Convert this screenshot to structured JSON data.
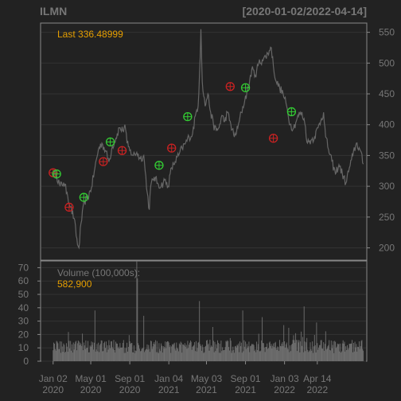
{
  "chart_data": {
    "type": "line",
    "symbol": "ILMN",
    "date_range": "[2020-01-02/2022-04-14]",
    "last_label": "Last 336.48999",
    "price": {
      "ylim": [
        180,
        565
      ],
      "yticks": [
        200,
        250,
        300,
        350,
        400,
        450,
        500,
        550
      ],
      "series": [
        {
          "x": 0,
          "y": 322
        },
        {
          "x": 5,
          "y": 318
        },
        {
          "x": 10,
          "y": 300
        },
        {
          "x": 15,
          "y": 306
        },
        {
          "x": 20,
          "y": 290
        },
        {
          "x": 25,
          "y": 266
        },
        {
          "x": 30,
          "y": 248
        },
        {
          "x": 35,
          "y": 205
        },
        {
          "x": 37,
          "y": 200
        },
        {
          "x": 40,
          "y": 240
        },
        {
          "x": 45,
          "y": 275
        },
        {
          "x": 50,
          "y": 282
        },
        {
          "x": 55,
          "y": 298
        },
        {
          "x": 60,
          "y": 330
        },
        {
          "x": 65,
          "y": 360
        },
        {
          "x": 70,
          "y": 370
        },
        {
          "x": 75,
          "y": 358
        },
        {
          "x": 80,
          "y": 340
        },
        {
          "x": 85,
          "y": 365
        },
        {
          "x": 90,
          "y": 378
        },
        {
          "x": 95,
          "y": 395
        },
        {
          "x": 100,
          "y": 390
        },
        {
          "x": 103,
          "y": 400
        },
        {
          "x": 106,
          "y": 370
        },
        {
          "x": 110,
          "y": 358
        },
        {
          "x": 115,
          "y": 350
        },
        {
          "x": 120,
          "y": 355
        },
        {
          "x": 125,
          "y": 345
        },
        {
          "x": 130,
          "y": 350
        },
        {
          "x": 135,
          "y": 290
        },
        {
          "x": 138,
          "y": 262
        },
        {
          "x": 140,
          "y": 300
        },
        {
          "x": 145,
          "y": 315
        },
        {
          "x": 150,
          "y": 305
        },
        {
          "x": 155,
          "y": 300
        },
        {
          "x": 160,
          "y": 310
        },
        {
          "x": 165,
          "y": 300
        },
        {
          "x": 170,
          "y": 330
        },
        {
          "x": 175,
          "y": 340
        },
        {
          "x": 180,
          "y": 350
        },
        {
          "x": 185,
          "y": 362
        },
        {
          "x": 190,
          "y": 370
        },
        {
          "x": 195,
          "y": 380
        },
        {
          "x": 200,
          "y": 385
        },
        {
          "x": 205,
          "y": 420
        },
        {
          "x": 208,
          "y": 430
        },
        {
          "x": 211,
          "y": 510
        },
        {
          "x": 212,
          "y": 555
        },
        {
          "x": 214,
          "y": 470
        },
        {
          "x": 218,
          "y": 430
        },
        {
          "x": 222,
          "y": 450
        },
        {
          "x": 226,
          "y": 420
        },
        {
          "x": 230,
          "y": 400
        },
        {
          "x": 234,
          "y": 390
        },
        {
          "x": 238,
          "y": 395
        },
        {
          "x": 242,
          "y": 415
        },
        {
          "x": 246,
          "y": 405
        },
        {
          "x": 250,
          "y": 420
        },
        {
          "x": 255,
          "y": 400
        },
        {
          "x": 260,
          "y": 380
        },
        {
          "x": 265,
          "y": 395
        },
        {
          "x": 270,
          "y": 420
        },
        {
          "x": 275,
          "y": 440
        },
        {
          "x": 280,
          "y": 460
        },
        {
          "x": 285,
          "y": 490
        },
        {
          "x": 290,
          "y": 480
        },
        {
          "x": 295,
          "y": 500
        },
        {
          "x": 300,
          "y": 505
        },
        {
          "x": 305,
          "y": 510
        },
        {
          "x": 310,
          "y": 520
        },
        {
          "x": 313,
          "y": 525
        },
        {
          "x": 316,
          "y": 495
        },
        {
          "x": 320,
          "y": 470
        },
        {
          "x": 325,
          "y": 460
        },
        {
          "x": 330,
          "y": 450
        },
        {
          "x": 335,
          "y": 430
        },
        {
          "x": 340,
          "y": 400
        },
        {
          "x": 345,
          "y": 395
        },
        {
          "x": 350,
          "y": 410
        },
        {
          "x": 355,
          "y": 420
        },
        {
          "x": 360,
          "y": 410
        },
        {
          "x": 365,
          "y": 370
        },
        {
          "x": 370,
          "y": 375
        },
        {
          "x": 375,
          "y": 380
        },
        {
          "x": 380,
          "y": 395
        },
        {
          "x": 385,
          "y": 410
        },
        {
          "x": 388,
          "y": 420
        },
        {
          "x": 391,
          "y": 380
        },
        {
          "x": 395,
          "y": 360
        },
        {
          "x": 400,
          "y": 340
        },
        {
          "x": 405,
          "y": 320
        },
        {
          "x": 410,
          "y": 335
        },
        {
          "x": 415,
          "y": 320
        },
        {
          "x": 420,
          "y": 305
        },
        {
          "x": 425,
          "y": 330
        },
        {
          "x": 430,
          "y": 350
        },
        {
          "x": 435,
          "y": 370
        },
        {
          "x": 440,
          "y": 360
        },
        {
          "x": 445,
          "y": 336
        }
      ],
      "buy_signals": [
        {
          "x": 5,
          "y": 320
        },
        {
          "x": 44,
          "y": 282
        },
        {
          "x": 82,
          "y": 372
        },
        {
          "x": 152,
          "y": 334
        },
        {
          "x": 193,
          "y": 413
        },
        {
          "x": 276,
          "y": 460
        },
        {
          "x": 342,
          "y": 421
        }
      ],
      "sell_signals": [
        {
          "x": 0,
          "y": 322
        },
        {
          "x": 23,
          "y": 266
        },
        {
          "x": 72,
          "y": 340
        },
        {
          "x": 99,
          "y": 358
        },
        {
          "x": 170,
          "y": 362
        },
        {
          "x": 254,
          "y": 462
        },
        {
          "x": 316,
          "y": 378
        }
      ]
    },
    "volume": {
      "label": "Volume (100,000s):",
      "last_value": "582,900",
      "ylim": [
        0,
        75
      ],
      "yticks": [
        0,
        10,
        20,
        30,
        40,
        50,
        60,
        70
      ]
    },
    "x_axis": {
      "xlim": [
        -18,
        450
      ],
      "ticks": [
        {
          "x": 0,
          "label": "Jan 02",
          "year": "2020"
        },
        {
          "x": 54,
          "label": "May 01",
          "year": "2020"
        },
        {
          "x": 110,
          "label": "Sep 01",
          "year": "2020"
        },
        {
          "x": 166,
          "label": "Jan 04",
          "year": "2021"
        },
        {
          "x": 220,
          "label": "May 03",
          "year": "2021"
        },
        {
          "x": 276,
          "label": "Sep 01",
          "year": "2021"
        },
        {
          "x": 332,
          "label": "Jan 03",
          "year": "2022"
        },
        {
          "x": 379,
          "label": "Apr 14",
          "year": "2022"
        }
      ]
    },
    "colors": {
      "background": "#222222",
      "panel": "#222222",
      "grid": "#333333",
      "frame": "#888888",
      "line": "#666666",
      "text": "#777777",
      "accent": "#E69F00",
      "buy": "#33CC33",
      "sell": "#CC2222"
    }
  }
}
